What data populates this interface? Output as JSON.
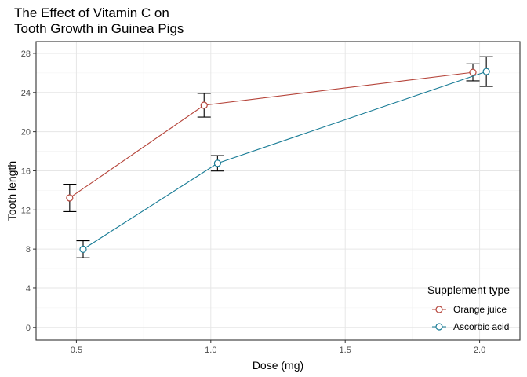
{
  "chart_data": {
    "type": "line",
    "title_lines": [
      "The Effect of Vitamin C on",
      "Tooth Growth in Guinea Pigs"
    ],
    "xlabel": "Dose (mg)",
    "ylabel": "Tooth length",
    "xlim": [
      0.35,
      2.15
    ],
    "ylim": [
      -1.3,
      29.2
    ],
    "x_ticks": [
      0.5,
      1.0,
      1.5,
      2.0
    ],
    "x_tick_labels": [
      "0.5",
      "1.0",
      "1.5",
      "2.0"
    ],
    "y_ticks": [
      0,
      4,
      8,
      12,
      16,
      20,
      24,
      28
    ],
    "y_tick_labels": [
      "0",
      "4",
      "8",
      "12",
      "16",
      "20",
      "24",
      "28"
    ],
    "grid": true,
    "legend": {
      "title": "Supplement type",
      "placement": "bottom-right"
    },
    "series": [
      {
        "name": "Orange juice",
        "color": "#b5443a",
        "x": [
          0.475,
          0.975,
          1.975
        ],
        "y": [
          13.23,
          22.7,
          26.06
        ],
        "err_low": [
          11.83,
          21.49,
          25.19
        ],
        "err_high": [
          14.63,
          23.91,
          26.93
        ]
      },
      {
        "name": "Ascorbic acid",
        "color": "#197c96",
        "x": [
          0.525,
          1.025,
          2.025
        ],
        "y": [
          7.98,
          16.77,
          26.14
        ],
        "err_low": [
          7.11,
          15.98,
          24.62
        ],
        "err_high": [
          8.85,
          17.56,
          27.66
        ]
      }
    ]
  }
}
